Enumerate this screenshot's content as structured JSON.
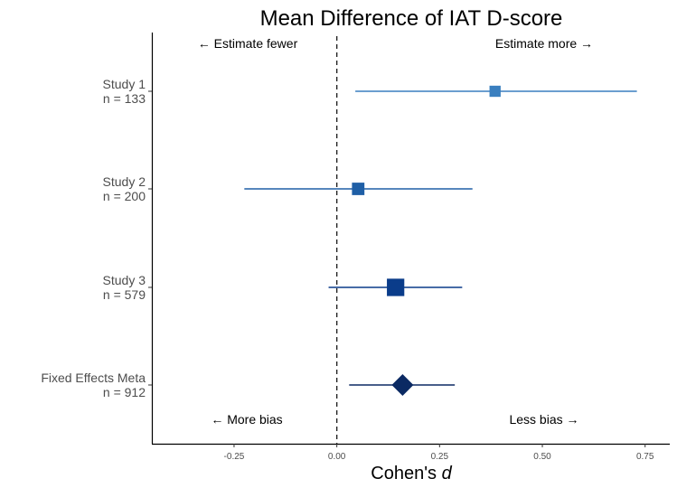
{
  "chart_data": {
    "type": "forest",
    "title": "Mean Difference of IAT D-score",
    "xlabel_prefix": "Cohen's ",
    "xlabel_var": "d",
    "xlim": [
      -0.45,
      0.81
    ],
    "x_ticks": [
      -0.25,
      0.0,
      0.25,
      0.5,
      0.75
    ],
    "x_tick_labels": [
      "-0.25",
      "0.00",
      "0.25",
      "0.50",
      "0.75"
    ],
    "reference_line": 0,
    "studies": [
      {
        "name": "Study 1",
        "n_label": "n = 133",
        "n": 133,
        "estimate": 0.385,
        "ci_low": 0.045,
        "ci_high": 0.73,
        "marker": "square",
        "color": "#3a7fbf"
      },
      {
        "name": "Study 2",
        "n_label": "n = 200",
        "n": 200,
        "estimate": 0.052,
        "ci_low": -0.225,
        "ci_high": 0.33,
        "marker": "square",
        "color": "#1f5fa6"
      },
      {
        "name": "Study 3",
        "n_label": "n = 579",
        "n": 579,
        "estimate": 0.143,
        "ci_low": -0.02,
        "ci_high": 0.305,
        "marker": "square",
        "color": "#0a3c8a"
      },
      {
        "name": "Fixed Effects Meta",
        "n_label": "n = 912",
        "n": 912,
        "estimate": 0.16,
        "ci_low": 0.03,
        "ci_high": 0.287,
        "marker": "diamond",
        "color": "#0b2a63"
      }
    ],
    "annotations": {
      "top_left": "← Estimate fewer",
      "top_right": "Estimate more →",
      "bottom_left": "← More bias",
      "bottom_right": "Less bias →"
    }
  }
}
